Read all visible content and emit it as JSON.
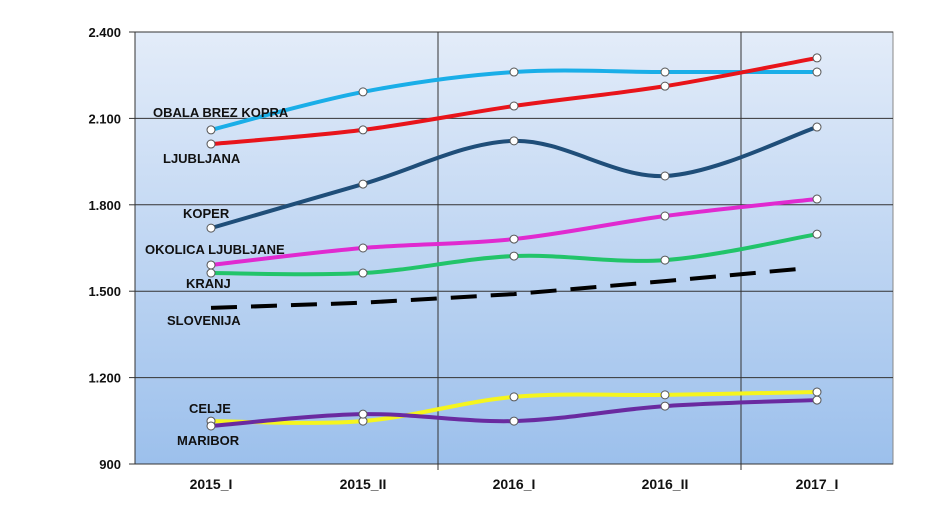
{
  "chart_data": {
    "type": "line",
    "categories": [
      "2015_I",
      "2015_II",
      "2016_I",
      "2016_II",
      "2017_I"
    ],
    "ylim": [
      900,
      2400
    ],
    "yticks": [
      "900",
      "1.200",
      "1.500",
      "1.800",
      "2.100",
      "2.400"
    ],
    "ytick_values": [
      900,
      1200,
      1500,
      1800,
      2100,
      2400
    ],
    "grid": true,
    "legend": "inline labels at left",
    "series": [
      {
        "name": "OBALA BREZ KOPRA",
        "color": "#1aaee8",
        "values": [
          2060,
          2192,
          2261,
          2261,
          2261
        ],
        "markers": true,
        "dashed": false
      },
      {
        "name": "LJUBLJANA",
        "color": "#e8141a",
        "values": [
          2011,
          2060,
          2143,
          2212,
          2310
        ],
        "markers": true,
        "dashed": false
      },
      {
        "name": "KOPER",
        "color": "#1f4e79",
        "values": [
          1719,
          1872,
          2022,
          1900,
          2070
        ],
        "markers": true,
        "dashed": false
      },
      {
        "name": "OKOLICA LJUBLJANE",
        "color": "#e02ad0",
        "values": [
          1591,
          1650,
          1681,
          1761,
          1820
        ],
        "markers": true,
        "dashed": false
      },
      {
        "name": "KRANJ",
        "color": "#22c46a",
        "values": [
          1563,
          1563,
          1622,
          1608,
          1698
        ],
        "markers": true,
        "dashed": false
      },
      {
        "name": "SLOVENIJA",
        "color": "#000000",
        "values": [
          1442,
          1460,
          1490,
          1535,
          1580
        ],
        "markers": false,
        "dashed": true
      },
      {
        "name": "CELJE",
        "color": "#f5f51e",
        "values": [
          1049,
          1049,
          1133,
          1140,
          1150
        ],
        "markers": true,
        "dashed": false
      },
      {
        "name": "MARIBOR",
        "color": "#6a2aa0",
        "values": [
          1032,
          1073,
          1049,
          1101,
          1122
        ],
        "markers": true,
        "dashed": false
      }
    ]
  }
}
